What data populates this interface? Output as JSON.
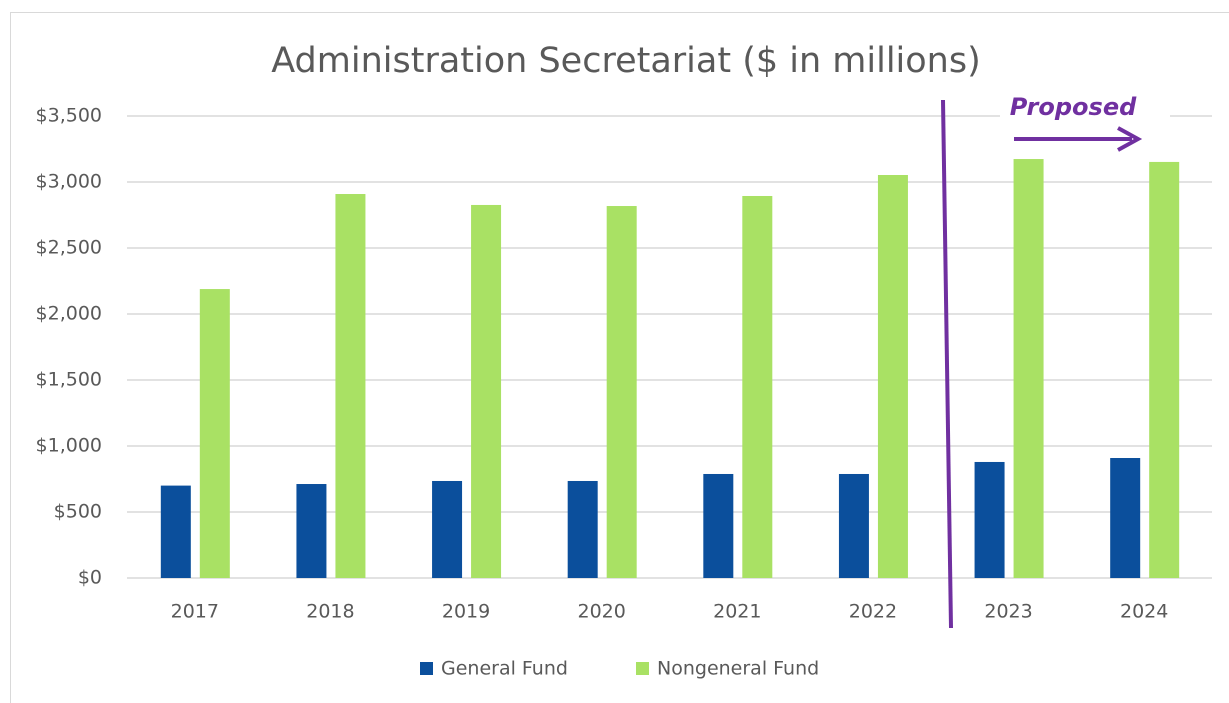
{
  "chart_data": {
    "type": "bar",
    "title": "Administration Secretariat ($ in millions)",
    "categories": [
      "2017",
      "2018",
      "2019",
      "2020",
      "2021",
      "2022",
      "2023",
      "2024"
    ],
    "series": [
      {
        "name": "General Fund",
        "color": "#0b4f9c",
        "values": [
          700,
          712,
          735,
          735,
          788,
          788,
          879,
          909
        ]
      },
      {
        "name": "Nongeneral Fund",
        "color": "#a9e164",
        "values": [
          2189,
          2909,
          2826,
          2818,
          2894,
          3053,
          3174,
          3152
        ]
      }
    ],
    "ylim": [
      0,
      3500
    ],
    "yticks": [
      {
        "value": 0,
        "label": "$0"
      },
      {
        "value": 500,
        "label": "$500"
      },
      {
        "value": 1000,
        "label": "$1,000"
      },
      {
        "value": 1500,
        "label": "$1,500"
      },
      {
        "value": 2000,
        "label": "$2,000"
      },
      {
        "value": 2500,
        "label": "$2,500"
      },
      {
        "value": 3000,
        "label": "$3,000"
      },
      {
        "value": 3500,
        "label": "$3,500"
      }
    ],
    "grid": true,
    "legend": "bottom",
    "annotation": "Proposed",
    "annotation_color": "#7030a0"
  }
}
